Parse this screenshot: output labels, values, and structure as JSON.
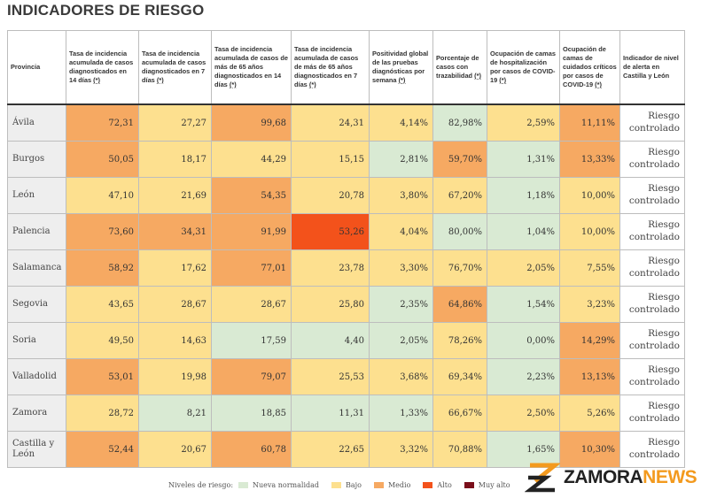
{
  "title": "INDICADORES DE RIESGO",
  "header": {
    "provincia": "Provincia",
    "columns": [
      {
        "label": "Tasa de incidencia acumulada de casos diagnosticados en 14 días",
        "note": "(*)"
      },
      {
        "label": "Tasa de incidencia acumulada de casos diagnosticados en 7 días",
        "note": "(*)"
      },
      {
        "label": "Tasa de incidencia acumulada de casos de más de 65 años diagnosticados en 14 días",
        "note": "(*)"
      },
      {
        "label": "Tasa de incidencia acumulada de casos de más de 65 años diagnosticados en 7 días",
        "note": "(*)"
      },
      {
        "label": "Positividad global de las pruebas diagnósticas por semana",
        "note": "(*)"
      },
      {
        "label": "Porcentaje de casos con trazabilidad",
        "note": "(*)"
      },
      {
        "label": "Ocupación de camas de hospitalización por casos de COVID-19",
        "note": "(*)"
      },
      {
        "label": "Ocupación de camas de cuidados críticos por casos de COVID-19",
        "note": "(*)"
      }
    ],
    "indicador": "Indicador de nivel de alerta en Castilla y León"
  },
  "level_colors": {
    "nueva": "#d9ead3",
    "bajo": "#fde08f",
    "medio": "#f6a962",
    "alto": "#f3521b",
    "muyalto": "#7a0e1a"
  },
  "rows": [
    {
      "provincia": "Ávila",
      "status": "Riesgo controlado",
      "cells": [
        {
          "v": "72,31",
          "l": "medio"
        },
        {
          "v": "27,27",
          "l": "bajo"
        },
        {
          "v": "99,68",
          "l": "medio"
        },
        {
          "v": "24,31",
          "l": "bajo"
        },
        {
          "v": "4,14%",
          "l": "bajo"
        },
        {
          "v": "82,98%",
          "l": "nueva"
        },
        {
          "v": "2,59%",
          "l": "bajo"
        },
        {
          "v": "11,11%",
          "l": "medio"
        }
      ]
    },
    {
      "provincia": "Burgos",
      "status": "Riesgo controlado",
      "cells": [
        {
          "v": "50,05",
          "l": "medio"
        },
        {
          "v": "18,17",
          "l": "bajo"
        },
        {
          "v": "44,29",
          "l": "bajo"
        },
        {
          "v": "15,15",
          "l": "bajo"
        },
        {
          "v": "2,81%",
          "l": "nueva"
        },
        {
          "v": "59,70%",
          "l": "medio"
        },
        {
          "v": "1,31%",
          "l": "nueva"
        },
        {
          "v": "13,33%",
          "l": "medio"
        }
      ]
    },
    {
      "provincia": "León",
      "status": "Riesgo controlado",
      "cells": [
        {
          "v": "47,10",
          "l": "bajo"
        },
        {
          "v": "21,69",
          "l": "bajo"
        },
        {
          "v": "54,35",
          "l": "medio"
        },
        {
          "v": "20,78",
          "l": "bajo"
        },
        {
          "v": "3,80%",
          "l": "bajo"
        },
        {
          "v": "67,20%",
          "l": "bajo"
        },
        {
          "v": "1,18%",
          "l": "nueva"
        },
        {
          "v": "10,00%",
          "l": "bajo"
        }
      ]
    },
    {
      "provincia": "Palencia",
      "status": "Riesgo controlado",
      "cells": [
        {
          "v": "73,60",
          "l": "medio"
        },
        {
          "v": "34,31",
          "l": "medio"
        },
        {
          "v": "91,99",
          "l": "medio"
        },
        {
          "v": "53,26",
          "l": "alto"
        },
        {
          "v": "4,04%",
          "l": "bajo"
        },
        {
          "v": "80,00%",
          "l": "nueva"
        },
        {
          "v": "1,04%",
          "l": "nueva"
        },
        {
          "v": "10,00%",
          "l": "bajo"
        }
      ]
    },
    {
      "provincia": "Salamanca",
      "status": "Riesgo controlado",
      "cells": [
        {
          "v": "58,92",
          "l": "medio"
        },
        {
          "v": "17,62",
          "l": "bajo"
        },
        {
          "v": "77,01",
          "l": "medio"
        },
        {
          "v": "23,78",
          "l": "bajo"
        },
        {
          "v": "3,30%",
          "l": "bajo"
        },
        {
          "v": "76,70%",
          "l": "bajo"
        },
        {
          "v": "2,05%",
          "l": "bajo"
        },
        {
          "v": "7,55%",
          "l": "bajo"
        }
      ]
    },
    {
      "provincia": "Segovia",
      "status": "Riesgo controlado",
      "cells": [
        {
          "v": "43,65",
          "l": "bajo"
        },
        {
          "v": "28,67",
          "l": "bajo"
        },
        {
          "v": "28,67",
          "l": "bajo"
        },
        {
          "v": "25,80",
          "l": "bajo"
        },
        {
          "v": "2,35%",
          "l": "nueva"
        },
        {
          "v": "64,86%",
          "l": "medio"
        },
        {
          "v": "1,54%",
          "l": "nueva"
        },
        {
          "v": "3,23%",
          "l": "bajo"
        }
      ]
    },
    {
      "provincia": "Soria",
      "status": "Riesgo controlado",
      "cells": [
        {
          "v": "49,50",
          "l": "bajo"
        },
        {
          "v": "14,63",
          "l": "bajo"
        },
        {
          "v": "17,59",
          "l": "nueva"
        },
        {
          "v": "4,40",
          "l": "nueva"
        },
        {
          "v": "2,05%",
          "l": "nueva"
        },
        {
          "v": "78,26%",
          "l": "bajo"
        },
        {
          "v": "0,00%",
          "l": "nueva"
        },
        {
          "v": "14,29%",
          "l": "medio"
        }
      ]
    },
    {
      "provincia": "Valladolid",
      "status": "Riesgo controlado",
      "cells": [
        {
          "v": "53,01",
          "l": "medio"
        },
        {
          "v": "19,98",
          "l": "bajo"
        },
        {
          "v": "79,07",
          "l": "medio"
        },
        {
          "v": "25,53",
          "l": "bajo"
        },
        {
          "v": "3,68%",
          "l": "bajo"
        },
        {
          "v": "69,34%",
          "l": "bajo"
        },
        {
          "v": "2,23%",
          "l": "nueva"
        },
        {
          "v": "13,13%",
          "l": "medio"
        }
      ]
    },
    {
      "provincia": "Zamora",
      "status": "Riesgo controlado",
      "cells": [
        {
          "v": "28,72",
          "l": "bajo"
        },
        {
          "v": "8,21",
          "l": "nueva"
        },
        {
          "v": "18,85",
          "l": "nueva"
        },
        {
          "v": "11,31",
          "l": "nueva"
        },
        {
          "v": "1,33%",
          "l": "nueva"
        },
        {
          "v": "66,67%",
          "l": "bajo"
        },
        {
          "v": "2,50%",
          "l": "bajo"
        },
        {
          "v": "5,26%",
          "l": "bajo"
        }
      ]
    },
    {
      "provincia": "Castilla y León",
      "status": "Riesgo controlado",
      "cells": [
        {
          "v": "52,44",
          "l": "medio"
        },
        {
          "v": "20,67",
          "l": "bajo"
        },
        {
          "v": "60,78",
          "l": "medio"
        },
        {
          "v": "22,65",
          "l": "bajo"
        },
        {
          "v": "3,32%",
          "l": "bajo"
        },
        {
          "v": "70,88%",
          "l": "bajo"
        },
        {
          "v": "1,65%",
          "l": "nueva"
        },
        {
          "v": "10,30%",
          "l": "medio"
        }
      ]
    }
  ],
  "legend": {
    "label": "Niveles de riesgo:",
    "items": [
      {
        "key": "nueva",
        "label": "Nueva normalidad"
      },
      {
        "key": "bajo",
        "label": "Bajo"
      },
      {
        "key": "medio",
        "label": "Medio"
      },
      {
        "key": "alto",
        "label": "Alto"
      },
      {
        "key": "muyalto",
        "label": "Muy alto"
      }
    ]
  },
  "brand": {
    "part1": "ZAMORA",
    "part2": "NEWS",
    "icon": "zamora-news-logo-icon",
    "accent": "#f39a1e"
  }
}
